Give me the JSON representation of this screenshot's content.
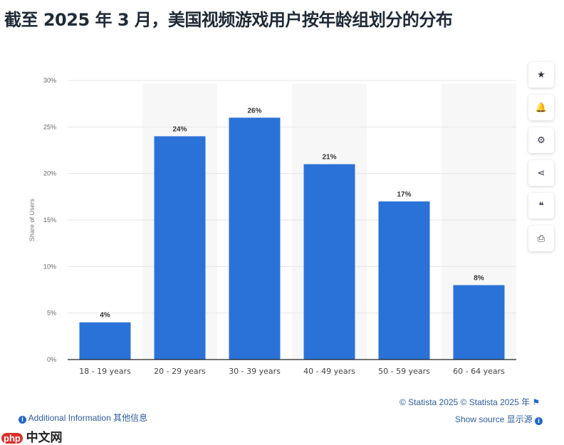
{
  "title": "截至 2025 年 3 月，美国视频游戏用户按年龄组划分的分布",
  "chart_data": {
    "type": "bar",
    "categories": [
      "18 - 19 years",
      "20 - 29 years",
      "30 - 39 years",
      "40 - 49 years",
      "50 - 59 years",
      "60 - 64 years"
    ],
    "values": [
      4,
      24,
      26,
      21,
      17,
      8
    ],
    "data_labels": [
      "4%",
      "24%",
      "26%",
      "21%",
      "17%",
      "8%"
    ],
    "ylabel": "Share of Users",
    "ylim": [
      0,
      30
    ],
    "yticks": [
      "0%",
      "5%",
      "10%",
      "15%",
      "20%",
      "25%",
      "30%"
    ],
    "grid": true,
    "bar_color": "#2b72d8"
  },
  "side_buttons": [
    {
      "icon": "star-icon",
      "glyph": "★"
    },
    {
      "icon": "bell-icon",
      "glyph": "🔔"
    },
    {
      "icon": "gear-icon",
      "glyph": "⚙"
    },
    {
      "icon": "share-icon",
      "glyph": "⋖"
    },
    {
      "icon": "quote-icon",
      "glyph": "❝"
    },
    {
      "icon": "print-icon",
      "glyph": "⎙"
    }
  ],
  "footer": {
    "copyright": "© Statista 2025  © Statista 2025 年",
    "additional_info": "Additional Information  其他信息",
    "show_source": "Show source  显示源",
    "logo": "php 中文网"
  }
}
